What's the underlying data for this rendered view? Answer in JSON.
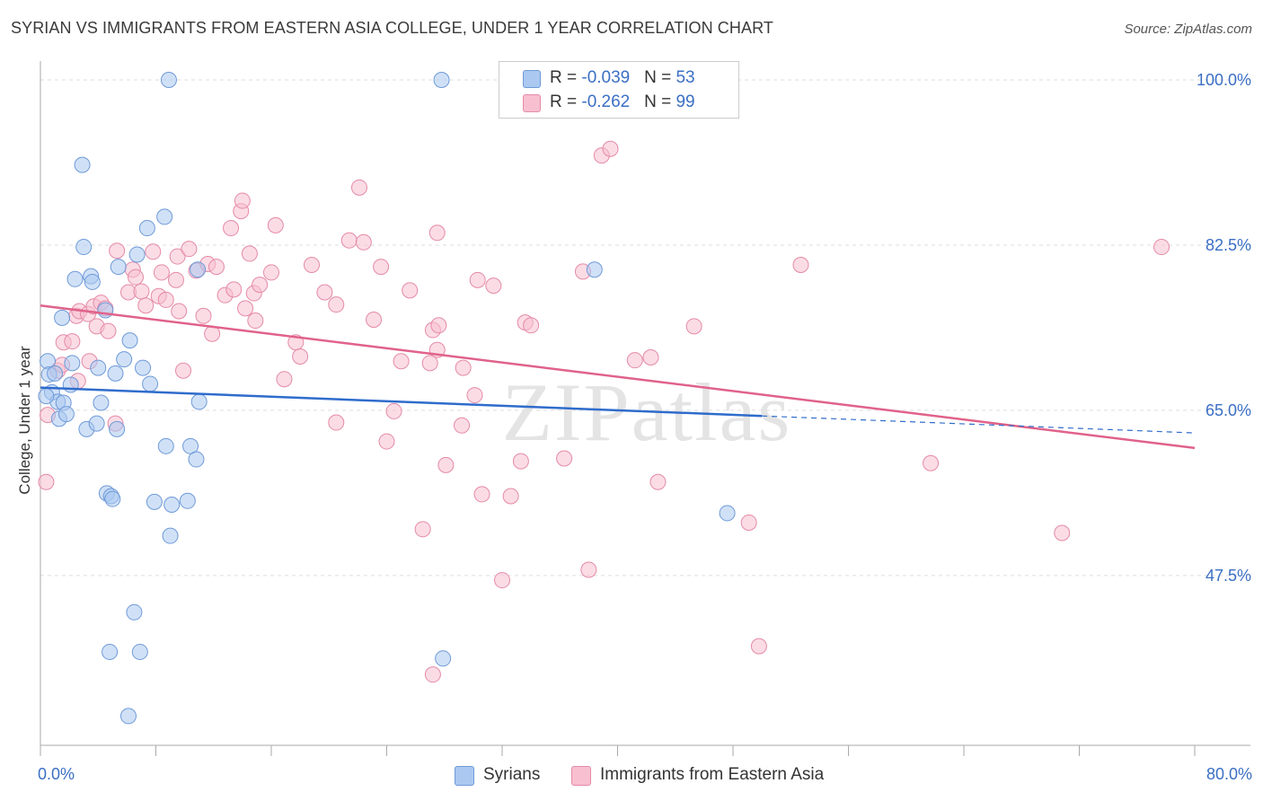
{
  "title": "SYRIAN VS IMMIGRANTS FROM EASTERN ASIA COLLEGE, UNDER 1 YEAR CORRELATION CHART",
  "source": "Source: ZipAtlas.com",
  "legend": {
    "syrians": {
      "r_label": "R = ",
      "r_value": "-0.039",
      "n_label": "N = ",
      "n_value": "53"
    },
    "immigrants": {
      "r_label": "R = ",
      "r_value": "-0.262",
      "n_label": "N = ",
      "n_value": "99"
    }
  },
  "bottom_legend": {
    "syrians": "Syrians",
    "immigrants": "Immigrants from Eastern Asia"
  },
  "colors": {
    "syrians_fill": "#aac8f0",
    "syrians_stroke": "#6f9ad8",
    "syrians_line": "#2f6ccc",
    "immigrants_fill": "#f7bfd0",
    "immigrants_stroke": "#e58aa8",
    "immigrants_line": "#e0628a",
    "tick_label": "#3b6fc4",
    "grid": "#dddddd"
  },
  "chart_data": {
    "type": "scatter",
    "title": "SYRIAN VS IMMIGRANTS FROM EASTERN ASIA COLLEGE, UNDER 1 YEAR CORRELATION CHART",
    "xlabel": "",
    "ylabel": "College, Under 1 year",
    "xlim": [
      0,
      80
    ],
    "ylim": [
      29.5,
      102
    ],
    "x_tick_labels": [
      "0.0%",
      "80.0%"
    ],
    "y_ticks": [
      47.5,
      65.0,
      82.5,
      100.0
    ],
    "y_tick_labels": [
      "47.5%",
      "65.0%",
      "82.5%",
      "100.0%"
    ],
    "grid": true,
    "legend_position": "top-center",
    "watermark": "ZIPatlas",
    "series": [
      {
        "name": "Syrians",
        "r": -0.039,
        "n": 53,
        "trend": {
          "x0": 0,
          "y0": 67.4,
          "x1": 50,
          "y1": 64.4,
          "dashed_to_x": 80,
          "dashed_to_y": 62.6
        },
        "points": [
          [
            0.5,
            70.2
          ],
          [
            0.6,
            68.8
          ],
          [
            0.8,
            66.9
          ],
          [
            1.0,
            68.9
          ],
          [
            1.2,
            65.9
          ],
          [
            1.3,
            64.1
          ],
          [
            1.5,
            74.8
          ],
          [
            1.6,
            65.8
          ],
          [
            1.8,
            64.6
          ],
          [
            2.1,
            67.7
          ],
          [
            2.2,
            70.0
          ],
          [
            2.4,
            78.9
          ],
          [
            2.9,
            91.0
          ],
          [
            3.0,
            82.3
          ],
          [
            3.2,
            63.0
          ],
          [
            3.5,
            79.2
          ],
          [
            3.6,
            78.6
          ],
          [
            3.9,
            63.6
          ],
          [
            4.0,
            69.5
          ],
          [
            4.2,
            65.8
          ],
          [
            4.5,
            75.6
          ],
          [
            4.6,
            56.2
          ],
          [
            4.8,
            39.4
          ],
          [
            4.9,
            55.9
          ],
          [
            5.0,
            55.6
          ],
          [
            5.2,
            68.9
          ],
          [
            5.3,
            63.0
          ],
          [
            5.4,
            80.2
          ],
          [
            5.8,
            70.4
          ],
          [
            6.1,
            32.6
          ],
          [
            6.2,
            72.4
          ],
          [
            6.5,
            43.6
          ],
          [
            6.7,
            81.5
          ],
          [
            6.9,
            39.4
          ],
          [
            7.1,
            69.5
          ],
          [
            7.4,
            84.3
          ],
          [
            7.6,
            67.8
          ],
          [
            7.9,
            55.3
          ],
          [
            8.6,
            85.5
          ],
          [
            8.7,
            61.2
          ],
          [
            8.9,
            100.0
          ],
          [
            9.0,
            51.7
          ],
          [
            9.1,
            55.0
          ],
          [
            10.2,
            55.4
          ],
          [
            10.4,
            61.2
          ],
          [
            10.8,
            59.8
          ],
          [
            10.9,
            79.9
          ],
          [
            11.0,
            65.9
          ],
          [
            27.8,
            100.0
          ],
          [
            27.9,
            38.7
          ],
          [
            38.4,
            79.9
          ],
          [
            47.6,
            54.1
          ],
          [
            0.4,
            66.5
          ]
        ]
      },
      {
        "name": "Immigrants from Eastern Asia",
        "r": -0.262,
        "n": 99,
        "trend": {
          "x0": 0,
          "y0": 76.1,
          "x1": 80,
          "y1": 61.0
        },
        "points": [
          [
            0.4,
            57.4
          ],
          [
            0.5,
            64.5
          ],
          [
            1.2,
            69.2
          ],
          [
            1.5,
            69.8
          ],
          [
            1.6,
            72.2
          ],
          [
            2.2,
            72.3
          ],
          [
            2.5,
            75.0
          ],
          [
            2.6,
            68.1
          ],
          [
            2.7,
            75.5
          ],
          [
            3.3,
            75.2
          ],
          [
            3.4,
            70.2
          ],
          [
            3.7,
            76.0
          ],
          [
            3.9,
            73.9
          ],
          [
            4.2,
            76.4
          ],
          [
            4.5,
            75.8
          ],
          [
            4.7,
            73.4
          ],
          [
            5.2,
            63.6
          ],
          [
            5.3,
            81.9
          ],
          [
            6.1,
            77.5
          ],
          [
            6.4,
            79.9
          ],
          [
            6.6,
            79.1
          ],
          [
            7.0,
            77.6
          ],
          [
            7.3,
            76.1
          ],
          [
            7.8,
            81.8
          ],
          [
            8.2,
            77.1
          ],
          [
            8.4,
            79.6
          ],
          [
            8.7,
            76.7
          ],
          [
            9.4,
            78.8
          ],
          [
            9.5,
            81.3
          ],
          [
            9.6,
            75.5
          ],
          [
            9.9,
            69.2
          ],
          [
            10.3,
            82.1
          ],
          [
            10.8,
            79.8
          ],
          [
            11.3,
            75.0
          ],
          [
            11.6,
            80.5
          ],
          [
            11.9,
            73.1
          ],
          [
            12.2,
            80.2
          ],
          [
            12.8,
            77.2
          ],
          [
            13.2,
            84.3
          ],
          [
            13.4,
            77.8
          ],
          [
            13.9,
            86.1
          ],
          [
            14.0,
            87.2
          ],
          [
            14.2,
            75.8
          ],
          [
            14.5,
            81.6
          ],
          [
            14.8,
            77.4
          ],
          [
            14.9,
            74.5
          ],
          [
            15.2,
            78.3
          ],
          [
            16.0,
            79.6
          ],
          [
            16.3,
            84.6
          ],
          [
            16.9,
            68.3
          ],
          [
            17.7,
            72.2
          ],
          [
            18.0,
            70.7
          ],
          [
            18.8,
            80.4
          ],
          [
            19.7,
            77.5
          ],
          [
            20.5,
            76.2
          ],
          [
            20.5,
            63.7
          ],
          [
            21.4,
            83.0
          ],
          [
            22.1,
            88.6
          ],
          [
            22.4,
            82.8
          ],
          [
            23.1,
            74.6
          ],
          [
            23.6,
            80.2
          ],
          [
            24.0,
            61.7
          ],
          [
            24.5,
            64.9
          ],
          [
            25.0,
            70.2
          ],
          [
            25.6,
            77.7
          ],
          [
            27.0,
            70.0
          ],
          [
            26.5,
            52.4
          ],
          [
            27.2,
            37.0
          ],
          [
            27.5,
            83.8
          ],
          [
            27.2,
            73.5
          ],
          [
            27.5,
            71.4
          ],
          [
            27.6,
            74.0
          ],
          [
            28.1,
            59.2
          ],
          [
            29.3,
            69.5
          ],
          [
            29.2,
            63.4
          ],
          [
            30.1,
            66.6
          ],
          [
            30.3,
            78.8
          ],
          [
            30.6,
            56.1
          ],
          [
            31.4,
            78.2
          ],
          [
            32.0,
            47.0
          ],
          [
            32.6,
            55.9
          ],
          [
            33.3,
            59.6
          ],
          [
            33.6,
            74.3
          ],
          [
            34.0,
            74.0
          ],
          [
            36.3,
            59.9
          ],
          [
            37.6,
            79.7
          ],
          [
            38.0,
            48.1
          ],
          [
            38.9,
            92.0
          ],
          [
            39.5,
            92.7
          ],
          [
            41.2,
            70.3
          ],
          [
            42.3,
            70.6
          ],
          [
            42.8,
            57.4
          ],
          [
            45.3,
            73.9
          ],
          [
            49.1,
            53.1
          ],
          [
            49.8,
            40.0
          ],
          [
            52.7,
            80.4
          ],
          [
            61.7,
            59.4
          ],
          [
            70.8,
            52.0
          ],
          [
            77.7,
            82.3
          ]
        ]
      }
    ]
  }
}
